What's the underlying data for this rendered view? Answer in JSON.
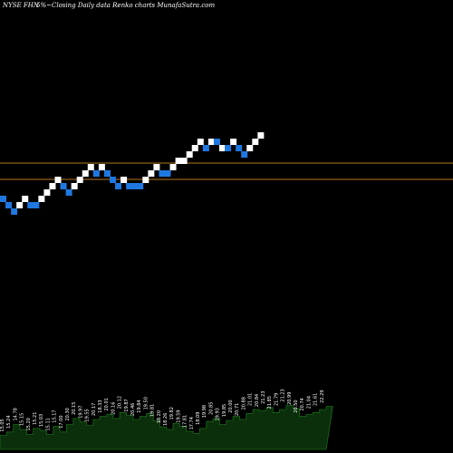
{
  "header": {
    "ticker": "NYSE FHN",
    "pct_label": "5%~",
    "description": "Closing Daily data  Renko  charts MunafaSutra.com"
  },
  "colors": {
    "background": "#000000",
    "up_brick": "#ffffff",
    "down_brick": "#1f78e0",
    "reference_line": "#b8741a",
    "volume_fill": "#0b2e0b",
    "volume_stroke": "#1a6a1a",
    "price_label": "#ffffff"
  },
  "chart_data": {
    "type": "renko",
    "brick_levels": [
      0,
      -1,
      -2,
      -1,
      0,
      -1,
      -1,
      0,
      1,
      2,
      3,
      2,
      1,
      2,
      3,
      4,
      5,
      4,
      5,
      4,
      3,
      2,
      3,
      2,
      2,
      2,
      3,
      4,
      5,
      4,
      4,
      5,
      6,
      6,
      7,
      8,
      9,
      8,
      9,
      9,
      8,
      8,
      9,
      8,
      7,
      8,
      9,
      10
    ],
    "brick_direction": [
      "down",
      "down",
      "down",
      "up",
      "up",
      "down",
      "down",
      "up",
      "up",
      "up",
      "up",
      "down",
      "down",
      "up",
      "up",
      "up",
      "up",
      "down",
      "up",
      "down",
      "down",
      "down",
      "up",
      "down",
      "down",
      "down",
      "up",
      "up",
      "up",
      "down",
      "down",
      "up",
      "up",
      "up",
      "up",
      "up",
      "up",
      "down",
      "up",
      "down",
      "up",
      "down",
      "up",
      "down",
      "down",
      "up",
      "up",
      "up"
    ],
    "reference_lines": 2,
    "price_labels": [
      "15.05",
      "15.24",
      "14.78",
      "15.15",
      "15.20",
      "15.21",
      "15.03",
      "15.11",
      "15.17",
      "17.00",
      "20.30",
      "20.15",
      "19.97",
      "19.55",
      "20.17",
      "18.33",
      "20.01",
      "20.16",
      "20.12",
      "19.87",
      "20.46",
      "19.84",
      "19.50",
      "19.81",
      "18.20",
      "18.26",
      "19.82",
      "19.59",
      "17.81",
      "17.74",
      "18.09",
      "19.98",
      "20.85",
      "19.93",
      "19.85",
      "20.00",
      "20.71",
      "20.88",
      "21.01",
      "20.84",
      "21.23",
      "21.85",
      "21.79",
      "21.23",
      "20.99",
      "20.50",
      "20.74",
      "21.04",
      "21.61",
      "22.29"
    ],
    "volume_profile": [
      0.28,
      0.35,
      0.5,
      0.4,
      0.3,
      0.42,
      0.38,
      0.3,
      0.46,
      0.35,
      0.5,
      0.62,
      0.55,
      0.48,
      0.6,
      0.66,
      0.7,
      0.62,
      0.74,
      0.68,
      0.6,
      0.66,
      0.72,
      0.58,
      0.45,
      0.4,
      0.52,
      0.46,
      0.36,
      0.32,
      0.42,
      0.56,
      0.62,
      0.5,
      0.58,
      0.66,
      0.6,
      0.72,
      0.8,
      0.78,
      0.84,
      0.74,
      0.8,
      0.88,
      0.82,
      0.66,
      0.7,
      0.74,
      0.8,
      0.86
    ]
  }
}
